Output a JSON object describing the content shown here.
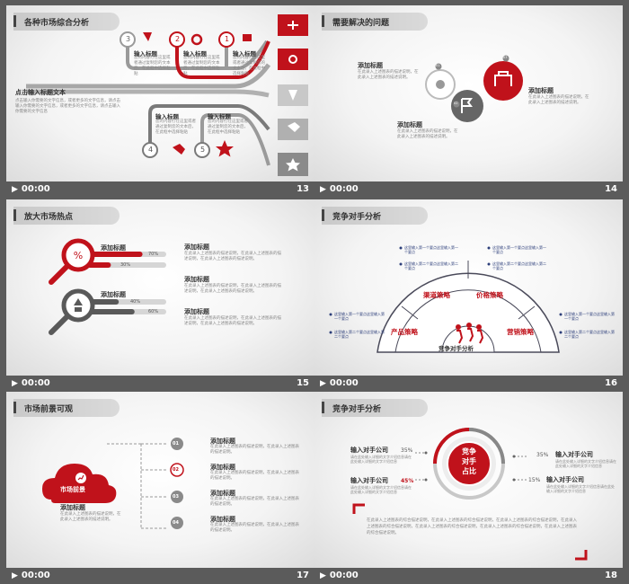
{
  "colors": {
    "accent": "#c0121b",
    "dark": "#595959",
    "gray": "#9a9a9a",
    "bg": "#5b5b5b"
  },
  "footer_time": "00:00",
  "slides": [
    {
      "num": "13",
      "title": "各种市场综合分析",
      "lead_title": "点击输入标题文本",
      "lead_body": "点击输入你需要的文字信息，或者更多的文字信息，请点击输入你需要的文字信息，或者更多的文字信息，请点击输入你需要的文字信息",
      "items": [
        {
          "n": "3",
          "title": "输入标题",
          "body": "您的内容打在这里或者通过复制您的文本后，在此框中选择粘贴"
        },
        {
          "n": "2",
          "title": "输入标题",
          "body": "您的内容打在这里或者通过复制您的文本后，在此框中选择粘贴"
        },
        {
          "n": "1",
          "title": "输入标题",
          "body": "您的内容打在这里或者通过复制您的文本后，在此框中选择粘贴"
        },
        {
          "n": "4",
          "title": "输入标题",
          "body": "您的内容打在这里或者通过复制您的文本后，在此框中选择粘贴"
        },
        {
          "n": "5",
          "title": "输入标题",
          "body": "您的内容打在这里或者通过复制您的文本后，在此框中选择粘贴"
        }
      ]
    },
    {
      "num": "14",
      "title": "需要解决的问题",
      "items": [
        {
          "title": "添加标题",
          "body": "在此录入上述图表的描述说明，在此录入上述图表的描述说明。"
        },
        {
          "title": "添加标题",
          "body": "在此录入上述图表的描述说明，在此录入上述图表的描述说明。"
        },
        {
          "title": "添加标题",
          "body": "在此录入上述图表的描述说明，在此录入上述图表的描述说明。"
        }
      ],
      "badges": [
        "01",
        "02",
        "03"
      ]
    },
    {
      "num": "15",
      "title": "放大市场热点",
      "bars": [
        {
          "title": "添加标题",
          "p1": "70%",
          "v1": 0.7,
          "p2": "30%",
          "v2": 0.3
        },
        {
          "title": "添加标题",
          "p1": "40%",
          "v1": 0.4,
          "p2": "60%",
          "v2": 0.6
        }
      ],
      "items": [
        {
          "title": "添加标题",
          "body": "在此录入上述图表的描述说明，在此录入上述图表的描述说明，在此录入上述图表的描述说明。"
        },
        {
          "title": "添加标题",
          "body": "在此录入上述图表的描述说明，在此录入上述图表的描述说明，在此录入上述图表的描述说明。"
        },
        {
          "title": "添加标题",
          "body": "在此录入上述图表的描述说明，在此录入上述图表的描述说明，在此录入上述图表的描述说明。"
        }
      ]
    },
    {
      "num": "16",
      "title": "竞争对手分析",
      "center": "竞争对手分析",
      "segments": [
        "产品策略",
        "渠道策略",
        "价格策略",
        "营销策略"
      ],
      "bullet1": "这里输入第一个要点这里输入第一个要点",
      "bullet2": "这里输入第二个要点这里输入第二个要点"
    },
    {
      "num": "17",
      "title": "市场前景可观",
      "cloud": "市场前景",
      "cloud_title": "添加标题",
      "cloud_body": "在此录入上述图表的描述说明，在此录入上述图表的描述说明。",
      "items": [
        {
          "n": "01",
          "title": "添加标题",
          "body": "在此录入上述图表的描述说明，在此录入上述图表的描述说明。"
        },
        {
          "n": "02",
          "title": "添加标题",
          "body": "在此录入上述图表的描述说明，在此录入上述图表的描述说明。"
        },
        {
          "n": "03",
          "title": "添加标题",
          "body": "在此录入上述图表的描述说明，在此录入上述图表的描述说明。"
        },
        {
          "n": "04",
          "title": "添加标题",
          "body": "在此录入上述图表的描述说明，在此录入上述图表的描述说明。"
        }
      ]
    },
    {
      "num": "18",
      "title": "竞争对手分析",
      "center": "竞争\n对手\n占比",
      "items": [
        {
          "title": "输入对手公司",
          "pct": "35%",
          "body": "请在此处输入详细的文字介绍信息请在此处输入详细的文字介绍信息"
        },
        {
          "title": "输入对手公司",
          "pct": "35%",
          "body": "请在此处输入详细的文字介绍信息请在此处输入详细的文字介绍信息"
        },
        {
          "title": "输入对手公司",
          "pct": "45%",
          "body": "请在此处输入详细的文字介绍信息请在此处输入详细的文字介绍信息"
        },
        {
          "title": "输入对手公司",
          "pct": "15%",
          "body": "请在此处输入详细的文字介绍信息请在此处输入详细的文字介绍信息"
        }
      ],
      "bottom": "在此录入上述图表的综合描述说明，在此录入上述图表的综合描述说明，在此录入上述图表的综合描述说明，在此录入上述图表的综合描述说明，在此录入上述图表的综合描述说明，在此录入上述图表的综合描述说明，在此录入上述图表的综合描述说明。"
    }
  ]
}
